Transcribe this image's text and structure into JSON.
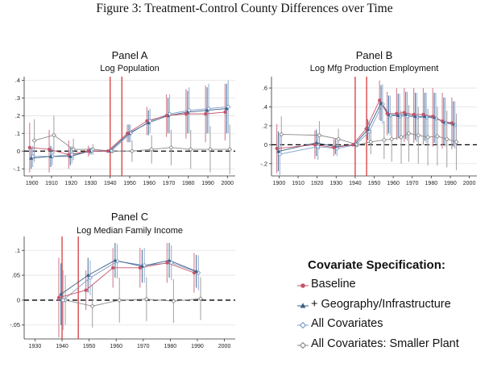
{
  "figure_title": "Figure 3: Treatment-Control County Differences over Time",
  "legend": {
    "title": "Covariate Specification:",
    "items": [
      {
        "label": "Baseline",
        "color": "#c7546a",
        "marker": "circle"
      },
      {
        "label": "+ Geography/Infrastructure",
        "color": "#3b5f86",
        "marker": "triangle"
      },
      {
        "label": "All Covariates",
        "color": "#7e9ec9",
        "marker": "diamond"
      },
      {
        "label": "All Covariates: Smaller Plant",
        "color": "#8a8a8a",
        "marker": "diamond"
      }
    ]
  },
  "chart_data": [
    {
      "type": "line",
      "title": "Panel A",
      "subtitle": "Log Population",
      "x": [
        1900,
        1910,
        1920,
        1930,
        1940,
        1950,
        1960,
        1970,
        1980,
        1990,
        2000
      ],
      "xticks": [
        1900,
        1910,
        1920,
        1930,
        1940,
        1950,
        1960,
        1970,
        1980,
        1990,
        2000
      ],
      "xlim": [
        1896,
        2004
      ],
      "ylim": [
        -0.14,
        0.42
      ],
      "yticks": [
        -0.1,
        0,
        0.1,
        0.2,
        0.3,
        0.4
      ],
      "ytick_labels": [
        "-.1",
        "0",
        ".1",
        ".2",
        ".3",
        ".4"
      ],
      "vlines": [
        1940,
        1946
      ],
      "series": [
        {
          "values": [
            0.02,
            0.01,
            -0.02,
            0.0,
            0,
            0.1,
            0.17,
            0.2,
            0.21,
            0.21,
            0.22
          ],
          "ci_low": [
            -0.12,
            -0.12,
            -0.1,
            -0.03,
            0,
            0.05,
            0.09,
            0.08,
            0.07,
            0.05,
            0.06
          ],
          "ci_high": [
            0.16,
            0.12,
            0.06,
            0.03,
            0,
            0.15,
            0.25,
            0.32,
            0.35,
            0.37,
            0.38
          ]
        },
        {
          "values": [
            -0.04,
            -0.03,
            -0.03,
            0.0,
            0,
            0.1,
            0.16,
            0.2,
            0.22,
            0.23,
            0.24
          ],
          "ci_low": [
            -0.1,
            -0.09,
            -0.08,
            -0.02,
            0,
            0.05,
            0.09,
            0.1,
            0.1,
            0.1,
            0.1
          ],
          "ci_high": [
            0.02,
            0.03,
            0.02,
            0.02,
            0,
            0.15,
            0.23,
            0.3,
            0.34,
            0.36,
            0.38
          ]
        },
        {
          "values": [
            -0.03,
            -0.03,
            -0.02,
            0.0,
            0,
            0.1,
            0.17,
            0.21,
            0.23,
            0.24,
            0.25
          ],
          "ci_low": [
            -0.09,
            -0.08,
            -0.07,
            -0.02,
            0,
            0.05,
            0.1,
            0.1,
            0.1,
            0.1,
            0.1
          ],
          "ci_high": [
            0.03,
            0.02,
            0.03,
            0.02,
            0,
            0.15,
            0.24,
            0.32,
            0.36,
            0.38,
            0.4
          ]
        },
        {
          "values": [
            0.06,
            0.09,
            0.01,
            0.01,
            0,
            0.0,
            0.01,
            0.02,
            0.01,
            0.01,
            0.01
          ],
          "ci_low": [
            -0.06,
            -0.02,
            -0.05,
            -0.02,
            0,
            -0.06,
            -0.07,
            -0.08,
            -0.1,
            -0.12,
            -0.13
          ],
          "ci_high": [
            0.18,
            0.2,
            0.07,
            0.04,
            0,
            0.06,
            0.09,
            0.12,
            0.12,
            0.14,
            0.15
          ]
        }
      ]
    },
    {
      "type": "line",
      "title": "Panel B",
      "subtitle": "Log Mfg Production Employment",
      "x": [
        1900,
        1920,
        1930,
        1940,
        1947,
        1954,
        1958,
        1963,
        1967,
        1972,
        1977,
        1982,
        1987,
        1992
      ],
      "xticks": [
        1900,
        1910,
        1920,
        1930,
        1940,
        1950,
        1960,
        1970,
        1980,
        1990,
        2000
      ],
      "xlim": [
        1896,
        2004
      ],
      "ylim": [
        -0.33,
        0.72
      ],
      "yticks": [
        -0.2,
        0,
        0.2,
        0.4,
        0.6
      ],
      "ytick_labels": [
        "-.2",
        "0",
        ".2",
        ".4",
        ".6"
      ],
      "vlines": [
        1940,
        1946
      ],
      "series": [
        {
          "values": [
            -0.04,
            0.0,
            -0.03,
            0,
            0.17,
            0.47,
            0.33,
            0.33,
            0.34,
            0.32,
            0.32,
            0.3,
            0.25,
            0.23
          ],
          "ci_low": [
            -0.3,
            -0.15,
            -0.12,
            0,
            0.05,
            0.26,
            0.1,
            0.05,
            0.03,
            0.02,
            0.0,
            -0.02,
            -0.04,
            -0.05
          ],
          "ci_high": [
            0.22,
            0.15,
            0.06,
            0,
            0.29,
            0.68,
            0.56,
            0.6,
            0.6,
            0.6,
            0.6,
            0.6,
            0.55,
            0.5
          ]
        },
        {
          "values": [
            -0.07,
            0.02,
            -0.02,
            0,
            0.16,
            0.44,
            0.32,
            0.31,
            0.32,
            0.3,
            0.3,
            0.29,
            0.24,
            0.22
          ],
          "ci_low": [
            -0.28,
            -0.12,
            -0.1,
            0,
            0.05,
            0.25,
            0.12,
            0.08,
            0.06,
            0.05,
            0.04,
            0.02,
            0.0,
            -0.02
          ],
          "ci_high": [
            0.14,
            0.16,
            0.06,
            0,
            0.27,
            0.63,
            0.52,
            0.54,
            0.56,
            0.55,
            0.55,
            0.55,
            0.5,
            0.46
          ]
        },
        {
          "values": [
            -0.1,
            -0.02,
            -0.04,
            0,
            0.14,
            0.43,
            0.31,
            0.3,
            0.3,
            0.29,
            0.29,
            0.28,
            0.23,
            0.21
          ],
          "ci_low": [
            -0.32,
            -0.16,
            -0.12,
            0,
            0.03,
            0.22,
            0.1,
            0.06,
            0.04,
            0.03,
            0.02,
            0.0,
            -0.02,
            -0.04
          ],
          "ci_high": [
            0.12,
            0.12,
            0.04,
            0,
            0.25,
            0.64,
            0.52,
            0.54,
            0.56,
            0.55,
            0.55,
            0.55,
            0.5,
            0.46
          ]
        },
        {
          "values": [
            0.11,
            0.1,
            0.06,
            0,
            0.03,
            0.05,
            0.06,
            0.08,
            0.12,
            0.1,
            0.08,
            0.09,
            0.06,
            0.03
          ],
          "ci_low": [
            -0.08,
            -0.05,
            -0.05,
            0,
            -0.1,
            -0.15,
            -0.18,
            -0.2,
            -0.18,
            -0.2,
            -0.22,
            -0.22,
            -0.24,
            -0.27
          ],
          "ci_high": [
            0.3,
            0.25,
            0.17,
            0,
            0.16,
            0.25,
            0.3,
            0.36,
            0.42,
            0.4,
            0.38,
            0.4,
            0.36,
            0.33
          ]
        }
      ]
    },
    {
      "type": "line",
      "title": "Panel C",
      "subtitle": "Log Median Family Income",
      "x": [
        1940,
        1950,
        1960,
        1970,
        1980,
        1990
      ],
      "xticks": [
        1930,
        1940,
        1950,
        1960,
        1970,
        1980,
        1990,
        2000
      ],
      "xlim": [
        1926,
        2004
      ],
      "ylim": [
        -0.078,
        0.128
      ],
      "yticks": [
        -0.05,
        0,
        0.05,
        0.1
      ],
      "ytick_labels": [
        "-.05",
        "0",
        ".05",
        ".1"
      ],
      "vlines": [
        1940,
        1946
      ],
      "series": [
        {
          "values": [
            0.005,
            0.02,
            0.065,
            0.065,
            0.075,
            0.055
          ],
          "ci_low": [
            -0.075,
            -0.02,
            0.025,
            0.025,
            0.035,
            0.015
          ],
          "ci_high": [
            0.085,
            0.06,
            0.105,
            0.105,
            0.115,
            0.095
          ]
        },
        {
          "values": [
            0.012,
            0.05,
            0.08,
            0.068,
            0.08,
            0.058
          ],
          "ci_low": [
            -0.05,
            0.015,
            0.045,
            0.035,
            0.045,
            0.025
          ],
          "ci_high": [
            0.074,
            0.085,
            0.115,
            0.101,
            0.115,
            0.091
          ]
        },
        {
          "values": [
            0.0,
            0.045,
            0.078,
            0.07,
            0.075,
            0.055
          ],
          "ci_low": [
            -0.06,
            0.01,
            0.043,
            0.035,
            0.04,
            0.02
          ],
          "ci_high": [
            0.06,
            0.08,
            0.113,
            0.105,
            0.11,
            0.09
          ]
        },
        {
          "values": [
            0.0,
            -0.012,
            0.0,
            0.002,
            -0.002,
            0.003
          ],
          "ci_low": [
            -0.05,
            -0.055,
            -0.045,
            -0.042,
            -0.046,
            -0.04
          ],
          "ci_high": [
            0.05,
            0.031,
            0.045,
            0.046,
            0.042,
            0.046
          ]
        }
      ]
    }
  ]
}
